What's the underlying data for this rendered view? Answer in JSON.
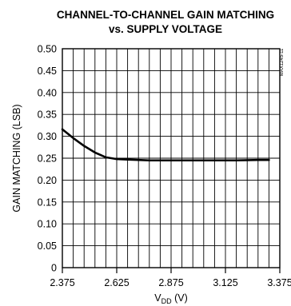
{
  "chart_data": {
    "type": "line",
    "title_line1": "CHANNEL-TO-CHANNEL GAIN MATCHING",
    "title_line2": "vs. SUPPLY VOLTAGE",
    "xlabel_main": "V",
    "xlabel_sub": "DD",
    "xlabel_unit": " (V)",
    "ylabel": "GAIN MATCHING (LSB)",
    "side_id": "MAX1245-11",
    "xlim": [
      2.375,
      3.375
    ],
    "ylim": [
      0,
      0.5
    ],
    "xticks": [
      2.375,
      2.625,
      2.875,
      3.125,
      3.375
    ],
    "xtick_labels": [
      "2.375",
      "2.625",
      "2.875",
      "3.125",
      "3.375"
    ],
    "yticks": [
      0,
      0.05,
      0.1,
      0.15,
      0.2,
      0.25,
      0.3,
      0.35,
      0.4,
      0.45,
      0.5
    ],
    "ytick_labels": [
      "0",
      "0.05",
      "0.10",
      "0.15",
      "0.20",
      "0.25",
      "0.30",
      "0.35",
      "0.40",
      "0.45",
      "0.50"
    ],
    "x_minor_divisions": 5,
    "grid": true,
    "series": [
      {
        "x": [
          2.375,
          2.425,
          2.475,
          2.525,
          2.575,
          2.625,
          2.675,
          2.725,
          2.775,
          2.875,
          2.975,
          3.075,
          3.175,
          3.275,
          3.325
        ],
        "y": [
          0.316,
          0.296,
          0.278,
          0.263,
          0.252,
          0.248,
          0.247,
          0.246,
          0.245,
          0.245,
          0.245,
          0.245,
          0.245,
          0.246,
          0.246
        ]
      }
    ]
  }
}
